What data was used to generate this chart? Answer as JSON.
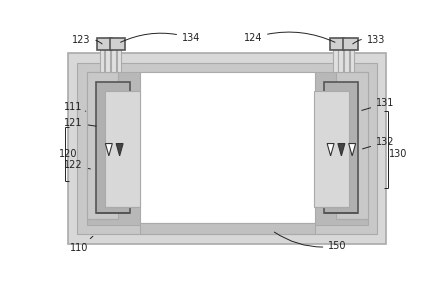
{
  "bg_color": "#ffffff",
  "outer_fill": "#e8e8e8",
  "inner_fill": "#d0d0d0",
  "white": "#ffffff",
  "lc_gray": "#aaaaaa",
  "lc_dark": "#555555",
  "lc_black": "#222222",
  "label_color": "#222222",
  "fig_width": 4.43,
  "fig_height": 2.85,
  "dpi": 100,
  "label_fs": 7
}
